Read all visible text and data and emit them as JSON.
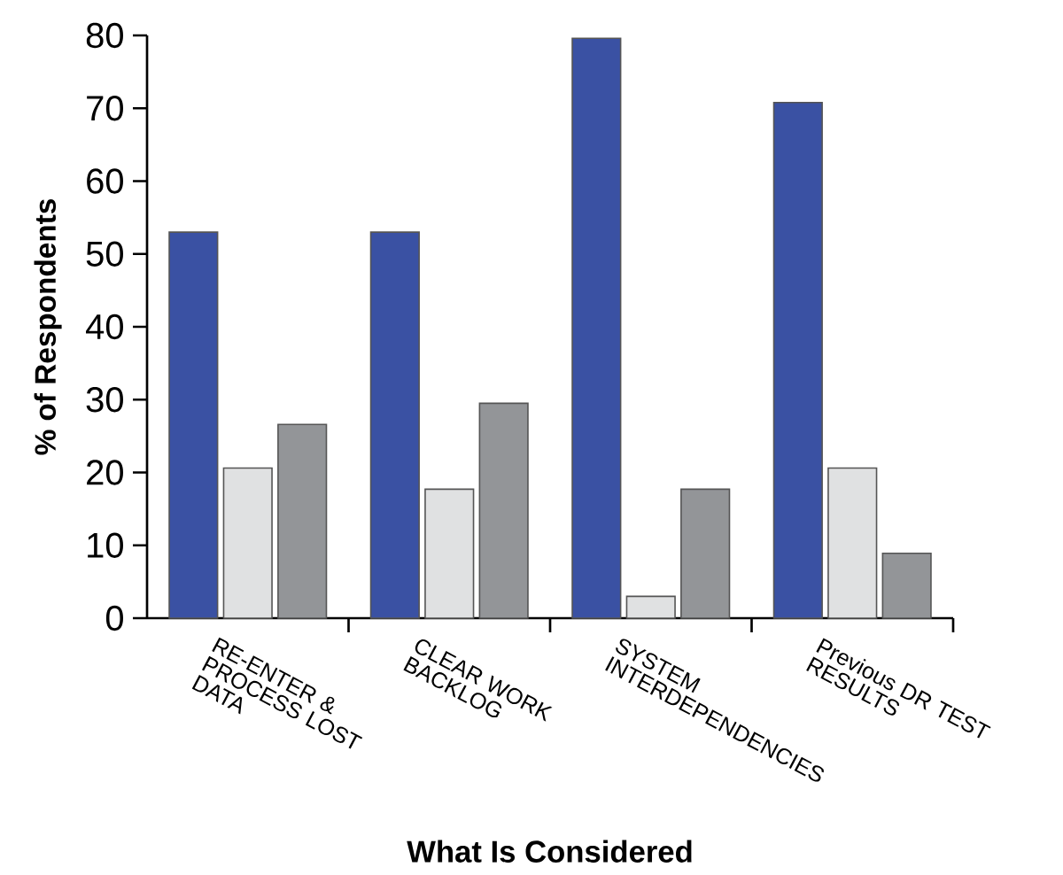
{
  "chart_data": {
    "type": "bar",
    "xlabel": "What Is Considered",
    "ylabel": "% of Respondents",
    "categories": [
      "RE-ENTER & PROCESS LOST DATA",
      "CLEAR WORK BACKLOG",
      "SYSTEM INTERDEPENDENCIES",
      "Previous DR TEST RESULTS"
    ],
    "series": [
      {
        "color": "#3a51a3",
        "values": [
          53,
          53,
          79.6,
          70.8
        ]
      },
      {
        "color": "#e0e1e2",
        "values": [
          20.6,
          17.7,
          3,
          20.6
        ]
      },
      {
        "color": "#939598",
        "values": [
          26.6,
          29.5,
          17.7,
          8.9
        ]
      }
    ],
    "ylim": [
      0,
      80
    ],
    "yticks": [
      0,
      10,
      20,
      30,
      40,
      50,
      60,
      70,
      80
    ]
  }
}
